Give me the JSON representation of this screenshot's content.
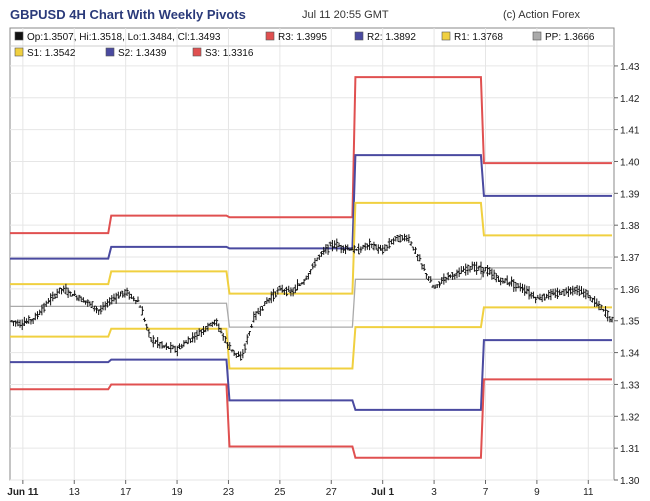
{
  "header": {
    "title": "GBPUSD 4H Chart With Weekly Pivots",
    "timestamp": "Jul 11 20:55 GMT",
    "credit": "(c) Action Forex"
  },
  "legend": {
    "ohlc": "Op:1.3507, Hi:1.3518, Lo:1.3484, Cl:1.3493",
    "ohlc_color": "#111111",
    "entries": [
      {
        "label": "R3: 1.3995",
        "color": "#e05050"
      },
      {
        "label": "R2: 1.3892",
        "color": "#4a4aa0"
      },
      {
        "label": "R1: 1.3768",
        "color": "#f0d040"
      },
      {
        "label": "PP: 1.3666",
        "color": "#aaaaaa"
      },
      {
        "label": "S1: 1.3542",
        "color": "#f0d040"
      },
      {
        "label": "S2: 1.3439",
        "color": "#4a4aa0"
      },
      {
        "label": "S3: 1.3316",
        "color": "#e05050"
      }
    ]
  },
  "chart_data": {
    "type": "line",
    "x_tick_labels": [
      {
        "label": "Jun 11",
        "x": 0,
        "bold": true
      },
      {
        "label": "13",
        "x": 2
      },
      {
        "label": "17",
        "x": 4
      },
      {
        "label": "19",
        "x": 6
      },
      {
        "label": "23",
        "x": 8
      },
      {
        "label": "25",
        "x": 10
      },
      {
        "label": "27",
        "x": 12
      },
      {
        "label": "Jul 1",
        "x": 14,
        "bold": true
      },
      {
        "label": "3",
        "x": 16
      },
      {
        "label": "7",
        "x": 18
      },
      {
        "label": "9",
        "x": 20
      },
      {
        "label": "11",
        "x": 22
      }
    ],
    "y_tick_labels": [
      "1.30",
      "1.31",
      "1.32",
      "1.33",
      "1.34",
      "1.35",
      "1.36",
      "1.37",
      "1.38",
      "1.39",
      "1.40",
      "1.41",
      "1.42",
      "1.43"
    ],
    "ylim": [
      1.3,
      1.435
    ],
    "xlim": [
      -0.5,
      23
    ],
    "pivot_weeks": [
      {
        "start": -0.5,
        "end": 3.4,
        "R3": 1.3775,
        "R2": 1.3695,
        "R1": 1.3615,
        "PP": 1.3545,
        "S1": 1.345,
        "S2": 1.337,
        "S3": 1.3285
      },
      {
        "start": 3.4,
        "end": 8.0,
        "R3": 1.383,
        "R2": 1.3732,
        "R1": 1.3655,
        "PP": 1.3555,
        "S1": 1.3475,
        "S2": 1.3378,
        "S3": 1.33
      },
      {
        "start": 8.0,
        "end": 12.9,
        "R3": 1.3825,
        "R2": 1.3727,
        "R1": 1.3585,
        "PP": 1.348,
        "S1": 1.335,
        "S2": 1.325,
        "S3": 1.3105
      },
      {
        "start": 12.9,
        "end": 17.9,
        "R3": 1.4265,
        "R2": 1.402,
        "R1": 1.387,
        "PP": 1.363,
        "S1": 1.348,
        "S2": 1.322,
        "S3": 1.307
      },
      {
        "start": 17.9,
        "end": 23.0,
        "R3": 1.3995,
        "R2": 1.3892,
        "R1": 1.3768,
        "PP": 1.3666,
        "S1": 1.3542,
        "S2": 1.3439,
        "S3": 1.3316
      }
    ],
    "price_path": [
      [
        -0.5,
        1.35
      ],
      [
        0.0,
        1.349
      ],
      [
        0.5,
        1.351
      ],
      [
        1.0,
        1.356
      ],
      [
        1.5,
        1.36
      ],
      [
        2.0,
        1.358
      ],
      [
        2.5,
        1.356
      ],
      [
        3.0,
        1.353
      ],
      [
        3.5,
        1.357
      ],
      [
        4.0,
        1.359
      ],
      [
        4.5,
        1.356
      ],
      [
        5.0,
        1.344
      ],
      [
        5.5,
        1.342
      ],
      [
        6.0,
        1.341
      ],
      [
        6.5,
        1.344
      ],
      [
        7.0,
        1.347
      ],
      [
        7.5,
        1.35
      ],
      [
        8.0,
        1.342
      ],
      [
        8.5,
        1.338
      ],
      [
        9.0,
        1.351
      ],
      [
        9.5,
        1.356
      ],
      [
        10.0,
        1.36
      ],
      [
        10.5,
        1.359
      ],
      [
        11.0,
        1.363
      ],
      [
        11.5,
        1.37
      ],
      [
        12.0,
        1.374
      ],
      [
        12.5,
        1.373
      ],
      [
        13.0,
        1.372
      ],
      [
        13.5,
        1.374
      ],
      [
        14.0,
        1.372
      ],
      [
        14.5,
        1.376
      ],
      [
        15.0,
        1.376
      ],
      [
        15.5,
        1.368
      ],
      [
        16.0,
        1.36
      ],
      [
        16.5,
        1.364
      ],
      [
        17.0,
        1.365
      ],
      [
        17.5,
        1.367
      ],
      [
        18.0,
        1.366
      ],
      [
        18.5,
        1.363
      ],
      [
        19.0,
        1.362
      ],
      [
        19.5,
        1.36
      ],
      [
        20.0,
        1.357
      ],
      [
        20.5,
        1.358
      ],
      [
        21.0,
        1.359
      ],
      [
        21.5,
        1.36
      ],
      [
        22.0,
        1.358
      ],
      [
        22.5,
        1.354
      ],
      [
        23.0,
        1.3495
      ]
    ],
    "grid": true,
    "legend_position": "top"
  }
}
